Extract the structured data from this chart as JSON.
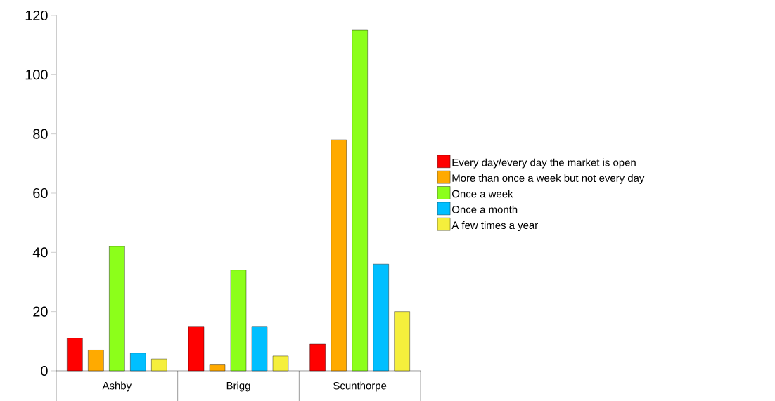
{
  "chart_data": {
    "type": "bar",
    "categories": [
      "Ashby",
      "Brigg",
      "Scunthorpe"
    ],
    "series": [
      {
        "name": "Every day/every day the market is open",
        "color": "#ff0000",
        "values": [
          11,
          15,
          9
        ]
      },
      {
        "name": "More than once a week but not every day",
        "color": "#ffaa00",
        "values": [
          7,
          2,
          78
        ]
      },
      {
        "name": "Once a week",
        "color": "#8cff1a",
        "values": [
          42,
          34,
          115
        ]
      },
      {
        "name": "Once a month",
        "color": "#00bfff",
        "values": [
          6,
          15,
          36
        ]
      },
      {
        "name": "A few times a year",
        "color": "#f5ef3c",
        "values": [
          4,
          5,
          20
        ]
      }
    ],
    "ylim": [
      0,
      120
    ],
    "yticks": [
      0,
      20,
      40,
      60,
      80,
      100,
      120
    ],
    "grid": false,
    "legend": "right"
  }
}
